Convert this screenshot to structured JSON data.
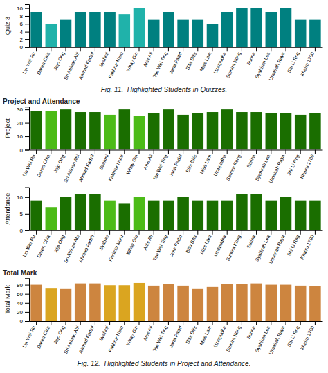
{
  "chart_data": [
    {
      "type": "bar",
      "y_label": "Quiz 3",
      "caption": "Fig. 11.  Highlighted Students in Quizzes.",
      "categories": [
        "Lin Wei Ru",
        "Daren Chia",
        "Jojo Ong",
        "Sri Abinan Abi",
        "Ahmad Fadzil",
        "Syahmi",
        "Fakhrur Nuru",
        "Whay Gin",
        "Anis Ali",
        "Tse Wei Ting",
        "Jana Fadzl",
        "Bilis Bilis",
        "Miss Lam",
        "Uzaipudha",
        "Sumira Kong",
        "Surina",
        "Syahirah Lea",
        "Umairah Raya",
        "Shi Li Rng",
        "Khairu 1700"
      ],
      "values": [
        9,
        6,
        7,
        9,
        9,
        9,
        8.5,
        10,
        7,
        9,
        7,
        7,
        6,
        9,
        10,
        10,
        9,
        10,
        7,
        7
      ],
      "colors": [
        "#008080",
        "#20B2AA",
        "#008080",
        "#008080",
        "#008080",
        "#008080",
        "#20B2AA",
        "#20B2AA",
        "#008080",
        "#008080",
        "#008080",
        "#008080",
        "#008080",
        "#008080",
        "#008080",
        "#008080",
        "#008080",
        "#008080",
        "#008080",
        "#008080"
      ],
      "ylim": [
        0,
        11
      ],
      "yticks": [
        0,
        2,
        4,
        6,
        8,
        10
      ],
      "grid": false
    },
    {
      "type": "bar",
      "title": "Project and Attendance",
      "y_label": "Project",
      "categories": [
        "Lin Wei Ru",
        "Daren Chia",
        "Jojo Ong",
        "Sri Abinan Abi",
        "Ahmad Fadzil",
        "Syahmi",
        "Fakhrur Nuru",
        "Whay Gin",
        "Anis Ali",
        "Tse Wei Ting",
        "Jana Fadzl",
        "Bilis Bilis",
        "Miss Lam",
        "Uzaipudha",
        "Sumira Kong",
        "Surina",
        "Syahirah Lea",
        "Umairah Raya",
        "Shi Li Rng",
        "Khairu 1700"
      ],
      "values": [
        29,
        29,
        30,
        28,
        28,
        26,
        30,
        25,
        27,
        30,
        26,
        27,
        28,
        30,
        28,
        28,
        27,
        27,
        26,
        27
      ],
      "colors": [
        "#1a6e00",
        "#4CBB17",
        "#1a6e00",
        "#1a6e00",
        "#1a6e00",
        "#4CBB17",
        "#1a6e00",
        "#4CBB17",
        "#1a6e00",
        "#1a6e00",
        "#1a6e00",
        "#1a6e00",
        "#1a6e00",
        "#1a6e00",
        "#1a6e00",
        "#1a6e00",
        "#1a6e00",
        "#1a6e00",
        "#1a6e00",
        "#1a6e00"
      ],
      "ylim": [
        0,
        32
      ],
      "yticks": [
        0,
        10,
        20,
        30
      ],
      "grid": false
    },
    {
      "type": "bar",
      "y_label": "Attendance",
      "categories": [
        "Lin Wei Ru",
        "Daren Chia",
        "Jojo Ong",
        "Sri Abinan Abi",
        "Ahmad Fadzil",
        "Syahmi",
        "Fakhrur Nuru",
        "Whay Gin",
        "Anis Ali",
        "Tse Wei Ting",
        "Jana Fadzl",
        "Bilis Bilis",
        "Miss Lam",
        "Uzaipudha",
        "Sumira Kong",
        "Surina",
        "Syahirah Lea",
        "Umairah Raya",
        "Shi Li Rng",
        "Khairu 1700"
      ],
      "values": [
        9,
        7,
        10,
        11,
        11,
        9,
        8,
        10,
        9,
        9,
        10,
        9,
        9,
        9,
        11,
        11,
        9,
        10,
        9,
        9
      ],
      "colors": [
        "#1a6e00",
        "#4CBB17",
        "#1a6e00",
        "#1a6e00",
        "#1a6e00",
        "#4CBB17",
        "#1a6e00",
        "#4CBB17",
        "#1a6e00",
        "#1a6e00",
        "#1a6e00",
        "#1a6e00",
        "#1a6e00",
        "#1a6e00",
        "#1a6e00",
        "#1a6e00",
        "#1a6e00",
        "#1a6e00",
        "#1a6e00",
        "#1a6e00"
      ],
      "ylim": [
        0,
        13
      ],
      "yticks": [
        0,
        5,
        10
      ],
      "grid": false
    },
    {
      "type": "bar",
      "title": "Total Mark",
      "y_label": "Total Mark",
      "caption": "Fig. 12.  Highlighted Students in Project and Attendance.",
      "categories": [
        "Lin Wei Ru",
        "Daren Chia",
        "Jojo Ong",
        "Sri Abinan Abi",
        "Ahmad Fadzil",
        "Syahmi",
        "Fakhrur Nuru",
        "Whay Gin",
        "Anis Ali",
        "Tse Wei Ting",
        "Jana Fadzl",
        "Bilis Bilis",
        "Miss Lam",
        "Uzaipudha",
        "Sumira Kong",
        "Surina",
        "Syahirah Lea",
        "Umairah Raya",
        "Shi Li Rng",
        "Khairu 1700"
      ],
      "values": [
        80,
        73,
        72,
        83,
        83,
        79,
        79,
        84,
        78,
        81,
        78,
        72,
        75,
        81,
        82,
        83,
        80,
        80,
        78,
        77
      ],
      "colors": [
        "#CD853F",
        "#DAA520",
        "#CD853F",
        "#CD853F",
        "#CD853F",
        "#DAA520",
        "#DAA520",
        "#DAA520",
        "#CD853F",
        "#CD853F",
        "#CD853F",
        "#CD853F",
        "#CD853F",
        "#CD853F",
        "#CD853F",
        "#CD853F",
        "#CD853F",
        "#CD853F",
        "#CD853F",
        "#CD853F"
      ],
      "ylim": [
        0,
        95
      ],
      "yticks": [
        0,
        20,
        40,
        60,
        80
      ],
      "grid": false
    }
  ]
}
